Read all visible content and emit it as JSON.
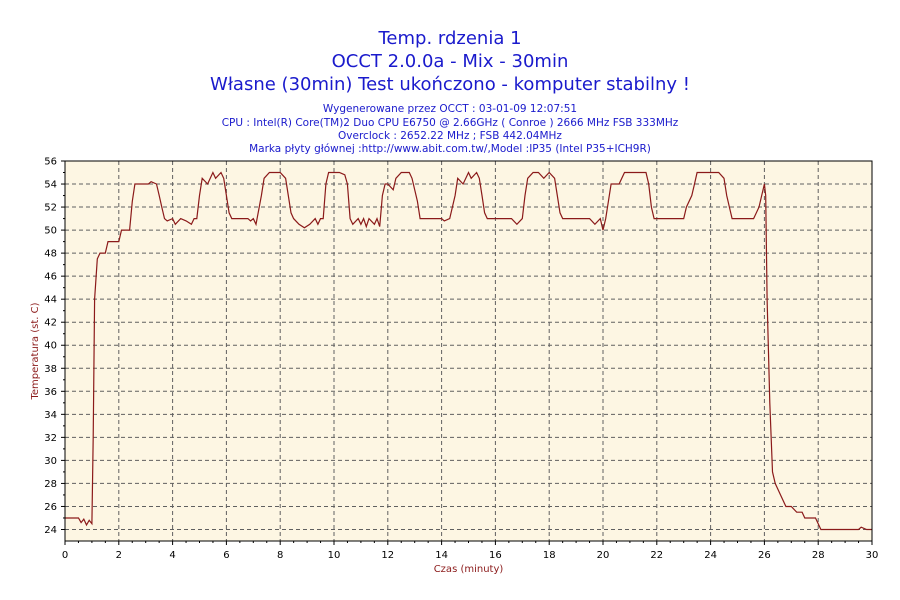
{
  "titles": {
    "line1": "Temp. rdzenia 1",
    "line2": "OCCT 2.0.0a - Mix - 30min",
    "line3": "Własne (30min) Test ukończono - komputer stabilny !"
  },
  "info": {
    "generated": "Wygenerowane przez OCCT : 03-01-09 12:07:51",
    "cpu": "CPU : Intel(R) Core(TM)2 Duo CPU E6750 @ 2.66GHz ( Conroe ) 2666 MHz FSB 333MHz",
    "overclock": "Overclock : 2652.22 MHz ; FSB 442.04MHz",
    "board": "Marka płyty głównej :http://www.abit.com.tw/,Model :IP35 (Intel P35+ICH9R)"
  },
  "colors": {
    "plot_bg": "#fdf6e3",
    "line": "#8b1a1a",
    "grid": "#606060",
    "text": "#1a1acc"
  },
  "chart_data": {
    "type": "line",
    "xlabel": "Czas (minuty)",
    "ylabel": "Temperatura (st. C)",
    "xlim": [
      0,
      30
    ],
    "ylim": [
      23,
      56
    ],
    "xticks": [
      0,
      2,
      4,
      6,
      8,
      10,
      12,
      14,
      16,
      18,
      20,
      22,
      24,
      26,
      28,
      30
    ],
    "yticks": [
      24,
      26,
      28,
      30,
      32,
      34,
      36,
      38,
      40,
      42,
      44,
      46,
      48,
      50,
      52,
      54,
      56
    ],
    "grid": true,
    "series": [
      {
        "values": [
          [
            0,
            25
          ],
          [
            0.5,
            25
          ],
          [
            0.6,
            24.6
          ],
          [
            0.7,
            24.9
          ],
          [
            0.8,
            24.4
          ],
          [
            0.9,
            24.8
          ],
          [
            1.0,
            24.5
          ],
          [
            1.05,
            32
          ],
          [
            1.1,
            44
          ],
          [
            1.2,
            47.5
          ],
          [
            1.3,
            48
          ],
          [
            1.5,
            48
          ],
          [
            1.6,
            49
          ],
          [
            2.0,
            49
          ],
          [
            2.1,
            50
          ],
          [
            2.4,
            50
          ],
          [
            2.5,
            52.5
          ],
          [
            2.6,
            54
          ],
          [
            3.1,
            54
          ],
          [
            3.2,
            54.2
          ],
          [
            3.4,
            54
          ],
          [
            3.5,
            53
          ],
          [
            3.6,
            52
          ],
          [
            3.7,
            51
          ],
          [
            3.8,
            50.8
          ],
          [
            4.0,
            51
          ],
          [
            4.1,
            50.5
          ],
          [
            4.3,
            51
          ],
          [
            4.5,
            50.8
          ],
          [
            4.7,
            50.5
          ],
          [
            4.8,
            51
          ],
          [
            4.9,
            51
          ],
          [
            5.0,
            53
          ],
          [
            5.1,
            54.5
          ],
          [
            5.3,
            54
          ],
          [
            5.5,
            55
          ],
          [
            5.6,
            54.5
          ],
          [
            5.8,
            55
          ],
          [
            5.9,
            54.5
          ],
          [
            6.0,
            53
          ],
          [
            6.1,
            51.5
          ],
          [
            6.2,
            51
          ],
          [
            6.5,
            51
          ],
          [
            6.8,
            51
          ],
          [
            6.9,
            50.8
          ],
          [
            7.0,
            51
          ],
          [
            7.1,
            50.5
          ],
          [
            7.3,
            53
          ],
          [
            7.4,
            54.5
          ],
          [
            7.6,
            55
          ],
          [
            8.0,
            55
          ],
          [
            8.2,
            54.5
          ],
          [
            8.3,
            53
          ],
          [
            8.4,
            51.5
          ],
          [
            8.5,
            51
          ],
          [
            8.7,
            50.5
          ],
          [
            8.9,
            50.2
          ],
          [
            9.1,
            50.5
          ],
          [
            9.3,
            51
          ],
          [
            9.4,
            50.5
          ],
          [
            9.5,
            51
          ],
          [
            9.6,
            51
          ],
          [
            9.7,
            54
          ],
          [
            9.8,
            55
          ],
          [
            10.2,
            55
          ],
          [
            10.4,
            54.8
          ],
          [
            10.5,
            54
          ],
          [
            10.6,
            51
          ],
          [
            10.7,
            50.5
          ],
          [
            10.9,
            51
          ],
          [
            11.0,
            50.5
          ],
          [
            11.1,
            51
          ],
          [
            11.2,
            50.3
          ],
          [
            11.3,
            51
          ],
          [
            11.5,
            50.5
          ],
          [
            11.6,
            51
          ],
          [
            11.7,
            50.3
          ],
          [
            11.8,
            53
          ],
          [
            11.9,
            54
          ],
          [
            12.0,
            54
          ],
          [
            12.2,
            53.5
          ],
          [
            12.3,
            54.5
          ],
          [
            12.5,
            55
          ],
          [
            12.8,
            55
          ],
          [
            12.9,
            54.5
          ],
          [
            13.0,
            53.5
          ],
          [
            13.1,
            52.5
          ],
          [
            13.2,
            51
          ],
          [
            14.0,
            51
          ],
          [
            14.1,
            50.8
          ],
          [
            14.3,
            51
          ],
          [
            14.5,
            53
          ],
          [
            14.6,
            54.5
          ],
          [
            14.8,
            54
          ],
          [
            15.0,
            55
          ],
          [
            15.1,
            54.5
          ],
          [
            15.3,
            55
          ],
          [
            15.4,
            54.5
          ],
          [
            15.5,
            53
          ],
          [
            15.6,
            51.5
          ],
          [
            15.7,
            51
          ],
          [
            16.4,
            51
          ],
          [
            16.6,
            51
          ],
          [
            16.8,
            50.5
          ],
          [
            17.0,
            51
          ],
          [
            17.1,
            53
          ],
          [
            17.2,
            54.5
          ],
          [
            17.4,
            55
          ],
          [
            17.6,
            55
          ],
          [
            17.8,
            54.5
          ],
          [
            18.0,
            55
          ],
          [
            18.2,
            54.5
          ],
          [
            18.3,
            53
          ],
          [
            18.4,
            51.5
          ],
          [
            18.5,
            51
          ],
          [
            19.0,
            51
          ],
          [
            19.5,
            51
          ],
          [
            19.7,
            50.5
          ],
          [
            19.9,
            51
          ],
          [
            20.0,
            50
          ],
          [
            20.1,
            51
          ],
          [
            20.2,
            52.5
          ],
          [
            20.3,
            54
          ],
          [
            20.6,
            54
          ],
          [
            20.8,
            55
          ],
          [
            21.6,
            55
          ],
          [
            21.7,
            54
          ],
          [
            21.8,
            52
          ],
          [
            21.9,
            51
          ],
          [
            23.0,
            51
          ],
          [
            23.1,
            52
          ],
          [
            23.3,
            53
          ],
          [
            23.4,
            54
          ],
          [
            23.5,
            55
          ],
          [
            24.3,
            55
          ],
          [
            24.5,
            54.5
          ],
          [
            24.6,
            53
          ],
          [
            24.7,
            52
          ],
          [
            24.8,
            51
          ],
          [
            25.6,
            51
          ],
          [
            25.8,
            52
          ],
          [
            25.9,
            53
          ],
          [
            26.0,
            54
          ],
          [
            26.05,
            53
          ],
          [
            26.1,
            44
          ],
          [
            26.2,
            35
          ],
          [
            26.3,
            29
          ],
          [
            26.4,
            28
          ],
          [
            26.5,
            27.5
          ],
          [
            26.6,
            27
          ],
          [
            26.8,
            26
          ],
          [
            27.0,
            26
          ],
          [
            27.2,
            25.5
          ],
          [
            27.4,
            25.5
          ],
          [
            27.5,
            25
          ],
          [
            27.9,
            25
          ],
          [
            28.0,
            24.5
          ],
          [
            28.1,
            24
          ],
          [
            29.0,
            24
          ],
          [
            29.5,
            24
          ],
          [
            29.6,
            24.2
          ],
          [
            29.8,
            24
          ],
          [
            30,
            24
          ]
        ]
      }
    ]
  }
}
